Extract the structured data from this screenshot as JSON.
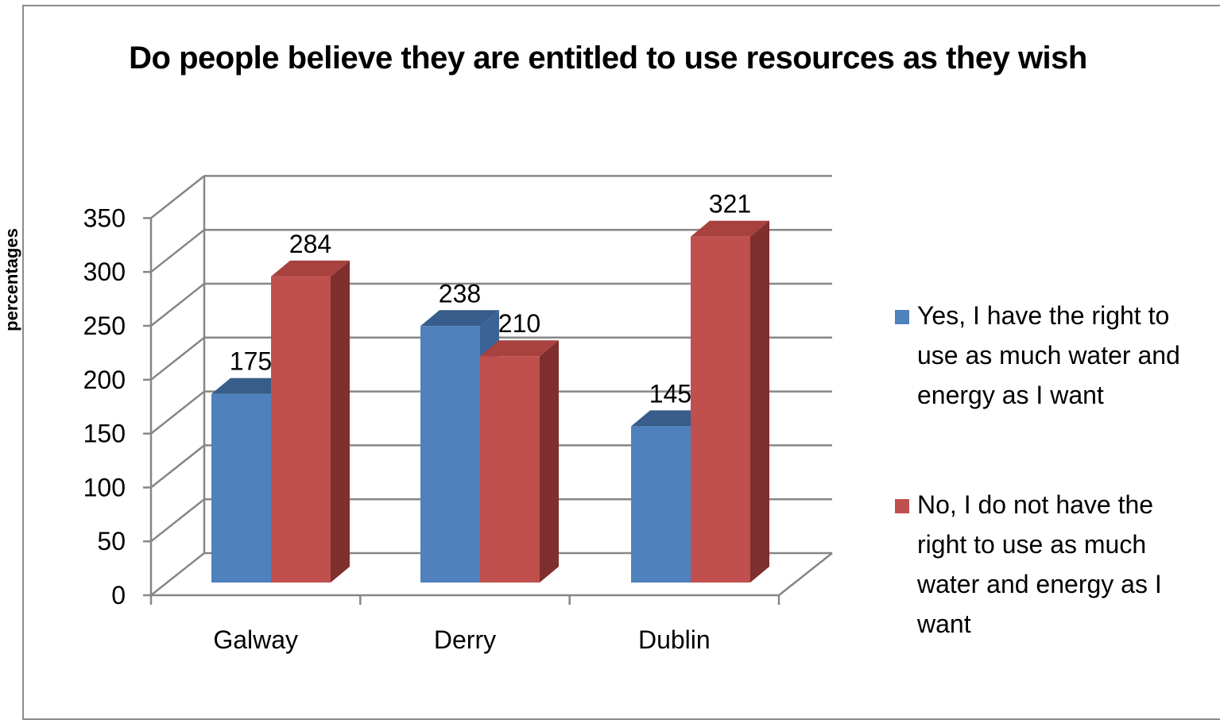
{
  "chart_data": {
    "type": "bar",
    "title": "Do people believe they are entitled  to use resources as they wish",
    "ylabel": "percentages",
    "xlabel": "",
    "categories": [
      "Galway",
      "Derry",
      "Dublin"
    ],
    "series": [
      {
        "name": "Yes, I have the right to use as much water and energy as I want",
        "values": [
          175,
          238,
          145
        ],
        "color": "#4f81bd",
        "side_color": "#3a6496",
        "top_color": "#385d8a"
      },
      {
        "name": "No, I do not have the right to use as much water and energy as I want",
        "values": [
          284,
          210,
          321
        ],
        "color": "#c0504d",
        "side_color": "#7f2f2d",
        "top_color": "#a8423f"
      }
    ],
    "ylim": [
      0,
      350
    ],
    "yticks": [
      "0",
      "50",
      "100",
      "150",
      "200",
      "250",
      "300",
      "350"
    ],
    "grid": true,
    "legend": "right",
    "style": "3d-clustered-column"
  }
}
